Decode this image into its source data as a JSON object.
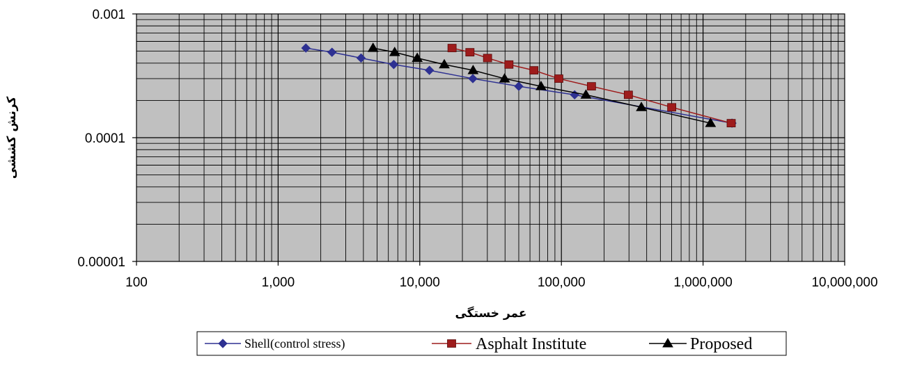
{
  "chart_data": {
    "type": "line",
    "title": "",
    "xlabel": "عمر خستگی",
    "ylabel": "کرنش کششی",
    "x_scale": "log",
    "y_scale": "log",
    "xlim": [
      100,
      10000000
    ],
    "ylim": [
      1e-05,
      0.001
    ],
    "grid": true,
    "legend_position": "bottom",
    "plot_background": "#c0c0c0",
    "x_ticks": [
      {
        "value": 100,
        "label": "100"
      },
      {
        "value": 1000,
        "label": "1,000"
      },
      {
        "value": 10000,
        "label": "10,000"
      },
      {
        "value": 100000,
        "label": "100,000"
      },
      {
        "value": 1000000,
        "label": "1,000,000"
      },
      {
        "value": 10000000,
        "label": "10,000,000"
      }
    ],
    "y_ticks": [
      {
        "value": 0.001,
        "label": "0.001"
      },
      {
        "value": 0.0001,
        "label": "0.0001"
      },
      {
        "value": 1e-05,
        "label": "0.00001"
      }
    ],
    "series": [
      {
        "name": "Shell(control stress)",
        "color": "#2e3192",
        "marker": "diamond",
        "x": [
          1570,
          2400,
          3850,
          6550,
          11700,
          23700,
          50000,
          124000,
          1600000
        ],
        "y": [
          0.00053,
          0.00049,
          0.00044,
          0.00039,
          0.00035,
          0.0003,
          0.00026,
          0.000222,
          0.000131
        ]
      },
      {
        "name": "Asphalt Institute",
        "color": "#9e1c1c",
        "marker": "square",
        "x": [
          16900,
          22600,
          30100,
          42600,
          63900,
          95800,
          163000,
          297000,
          601000,
          1580000
        ],
        "y": [
          0.00053,
          0.00049,
          0.00044,
          0.00039,
          0.00035,
          0.0003,
          0.00026,
          0.000222,
          0.000176,
          0.000131
        ]
      },
      {
        "name": "Proposed",
        "color": "#000000",
        "marker": "triangle",
        "x": [
          4680,
          6650,
          9600,
          14900,
          23800,
          39700,
          71800,
          149000,
          367000,
          1130000
        ],
        "y": [
          0.00053,
          0.00049,
          0.00044,
          0.00039,
          0.00035,
          0.0003,
          0.00026,
          0.000222,
          0.000176,
          0.000131
        ]
      }
    ]
  }
}
